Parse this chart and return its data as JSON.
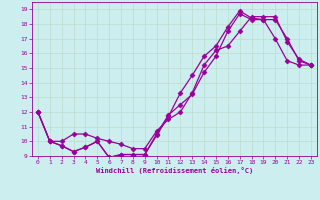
{
  "xlabel": "Windchill (Refroidissement éolien,°C)",
  "xlim": [
    -0.5,
    23.5
  ],
  "ylim": [
    9,
    19.5
  ],
  "xticks": [
    0,
    1,
    2,
    3,
    4,
    5,
    6,
    7,
    8,
    9,
    10,
    11,
    12,
    13,
    14,
    15,
    16,
    17,
    18,
    19,
    20,
    21,
    22,
    23
  ],
  "yticks": [
    9,
    10,
    11,
    12,
    13,
    14,
    15,
    16,
    17,
    18,
    19
  ],
  "color": "#990099",
  "bg_color": "#cceeee",
  "grid_color": "#bbddcc",
  "line1_x": [
    0,
    1,
    2,
    3,
    4,
    5,
    6,
    7,
    8,
    9,
    10,
    11,
    12,
    13,
    14,
    15,
    16,
    17,
    18,
    19,
    20,
    21,
    22,
    23
  ],
  "line1_y": [
    12,
    10,
    9.7,
    9.3,
    9.6,
    10.0,
    8.9,
    9.1,
    9.1,
    9.1,
    10.5,
    11.8,
    12.5,
    13.2,
    14.7,
    15.8,
    17.5,
    18.7,
    18.3,
    18.3,
    17.0,
    15.5,
    15.2,
    15.2
  ],
  "line2_x": [
    0,
    1,
    2,
    3,
    4,
    5,
    6,
    7,
    8,
    9,
    10,
    11,
    12,
    13,
    14,
    15,
    16,
    17,
    18,
    19,
    20,
    21,
    22,
    23
  ],
  "line2_y": [
    12,
    10,
    9.7,
    9.3,
    9.6,
    10.0,
    8.9,
    9.1,
    9.1,
    9.1,
    10.4,
    11.7,
    13.3,
    14.5,
    15.8,
    16.5,
    17.8,
    18.9,
    18.4,
    18.3,
    18.3,
    17.0,
    15.5,
    15.2
  ],
  "line3_x": [
    0,
    1,
    2,
    3,
    4,
    5,
    6,
    7,
    8,
    9,
    10,
    11,
    12,
    13,
    14,
    15,
    16,
    17,
    18,
    19,
    20,
    21,
    22,
    23
  ],
  "line3_y": [
    12,
    10,
    10.0,
    10.5,
    10.5,
    10.2,
    10.0,
    9.8,
    9.5,
    9.5,
    10.7,
    11.5,
    12.0,
    13.3,
    15.2,
    16.2,
    16.5,
    17.5,
    18.5,
    18.5,
    18.5,
    16.8,
    15.6,
    15.2
  ],
  "marker": "D",
  "markersize": 2.5,
  "linewidth": 0.9
}
